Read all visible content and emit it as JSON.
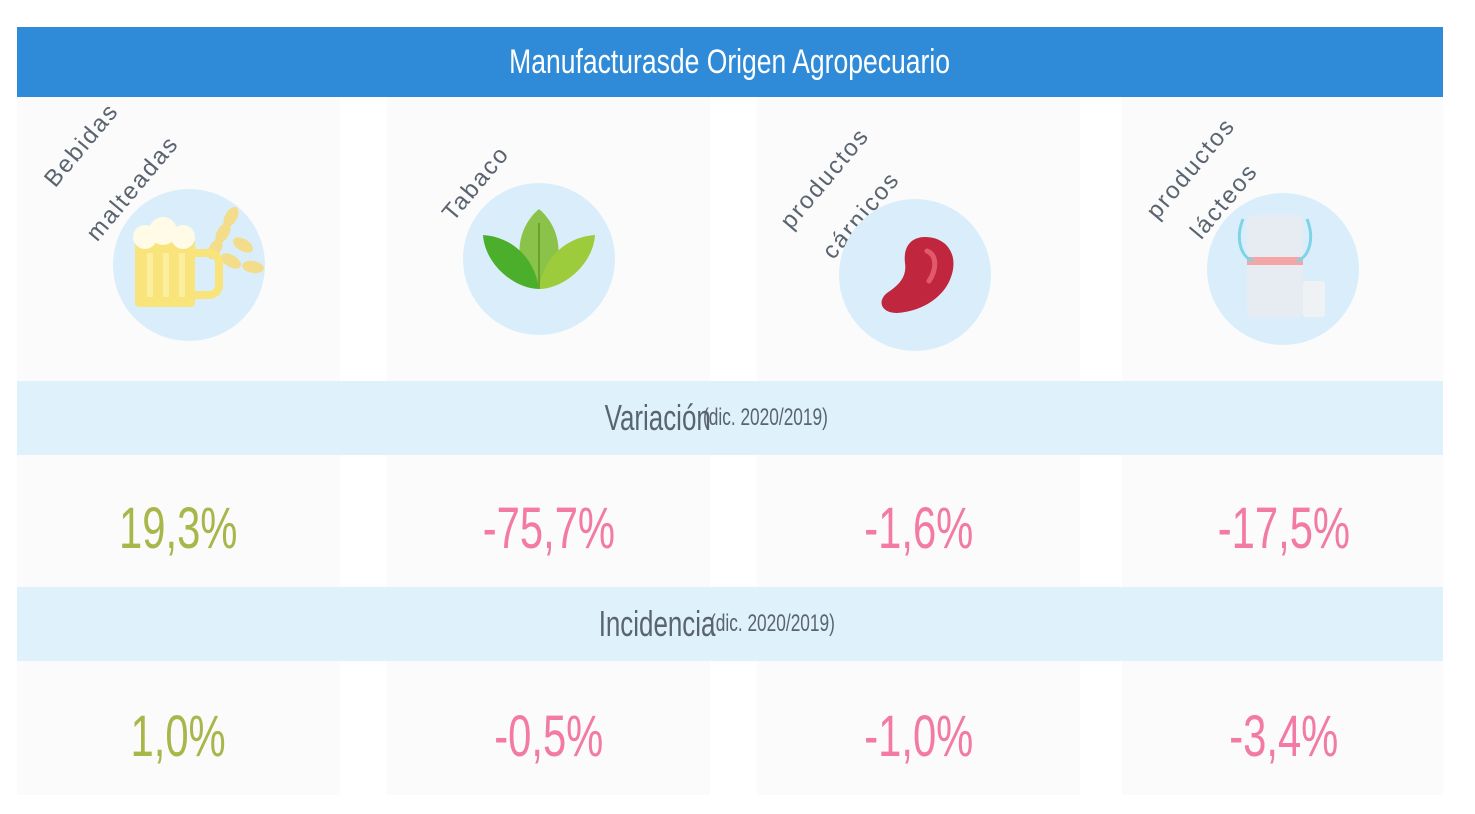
{
  "title": "Manufacturasde Origen Agropecuario",
  "categories": [
    {
      "label_line1": "Bebidas",
      "label_line2": "malteadas",
      "icon": "beer-mug-icon",
      "variacion": "19,3%",
      "incidencia": "1,0%",
      "variacion_sign": "positive",
      "incidencia_sign": "positive"
    },
    {
      "label_line1": "Tabaco",
      "label_line2": "",
      "icon": "tobacco-leaf-icon",
      "variacion": "-75,7%",
      "incidencia": "-0,5%",
      "variacion_sign": "negative",
      "incidencia_sign": "negative"
    },
    {
      "label_line1": "productos",
      "label_line2": "cárnicos",
      "icon": "meat-steak-icon",
      "variacion": "-1,6%",
      "incidencia": "-1,0%",
      "variacion_sign": "negative",
      "incidencia_sign": "negative"
    },
    {
      "label_line1": "productos",
      "label_line2": "lácteos",
      "icon": "milk-can-icon",
      "variacion": "-17,5%",
      "incidencia": "-3,4%",
      "variacion_sign": "negative",
      "incidencia_sign": "negative"
    }
  ],
  "bands": {
    "variacion_label": "Variación",
    "variacion_sub": "(dic. 2020/2019)",
    "incidencia_label": "Incidencia",
    "incidencia_sub": "(dic. 2020/2019)"
  },
  "colors": {
    "header": "#2f8ad8",
    "band": "#dff1fb",
    "positive": "#a9b64a",
    "negative": "#f27aa4"
  }
}
